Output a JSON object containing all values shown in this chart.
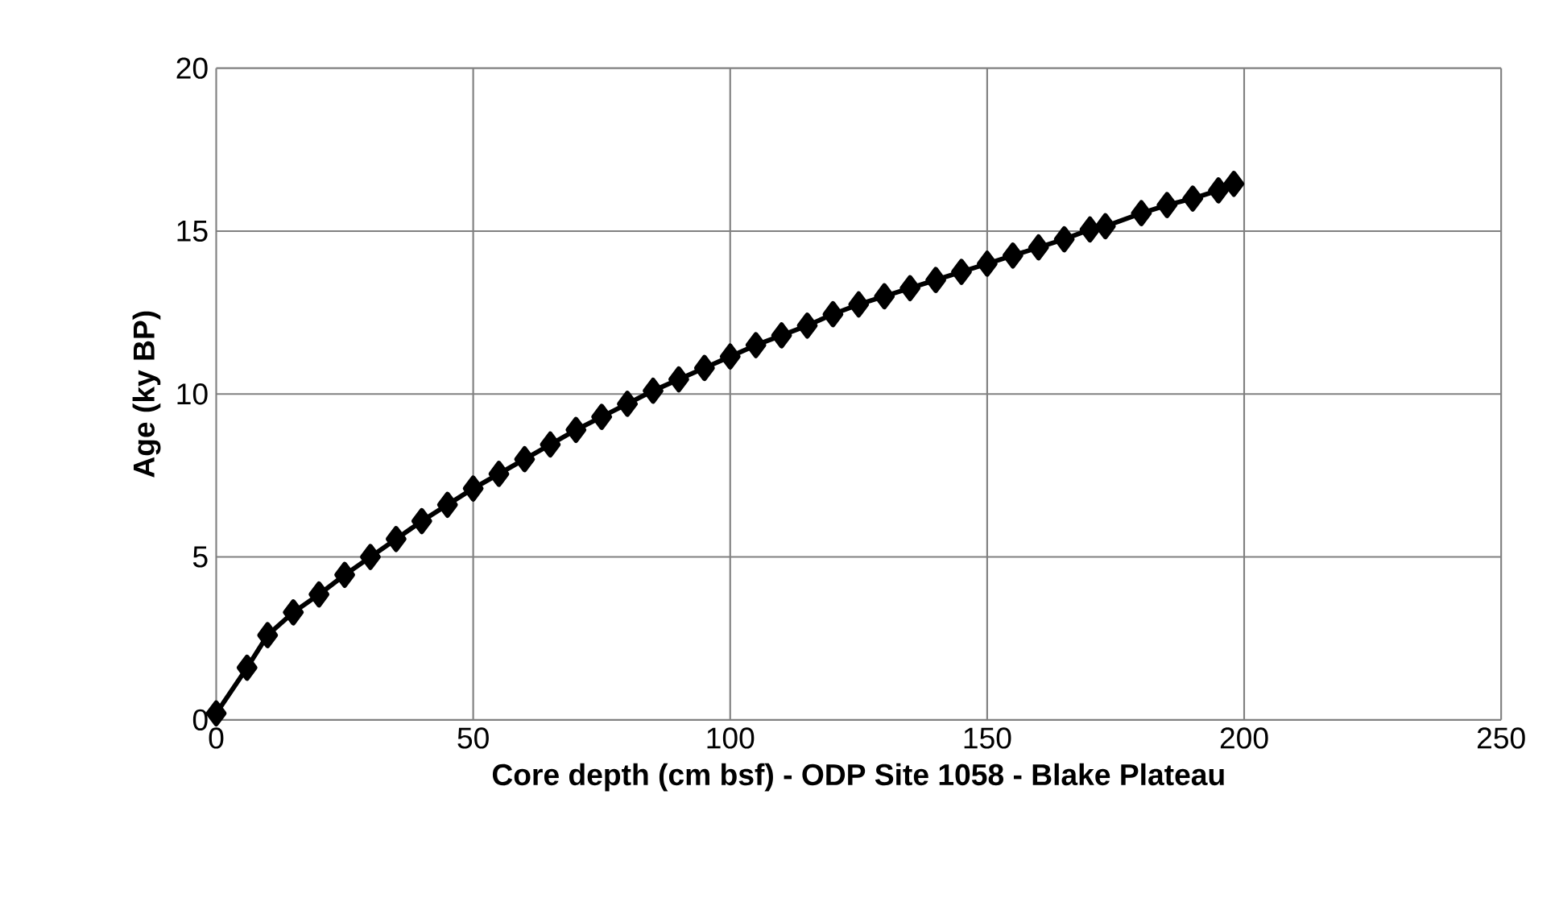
{
  "chart_data": {
    "type": "line",
    "xlabel": "Core depth (cm bsf)  -   ODP Site 1058 - Blake Plateau",
    "ylabel": "Age (ky BP)",
    "x": [
      0,
      6,
      10,
      15,
      20,
      25,
      30,
      35,
      40,
      45,
      50,
      55,
      60,
      65,
      70,
      75,
      80,
      85,
      90,
      95,
      100,
      105,
      110,
      115,
      120,
      125,
      130,
      135,
      140,
      145,
      150,
      155,
      160,
      165,
      170,
      173,
      180,
      185,
      190,
      195,
      198
    ],
    "values": [
      0.2,
      1.6,
      2.6,
      3.3,
      3.85,
      4.45,
      5.0,
      5.55,
      6.1,
      6.6,
      7.1,
      7.55,
      8.0,
      8.45,
      8.9,
      9.3,
      9.7,
      10.1,
      10.45,
      10.8,
      11.15,
      11.5,
      11.8,
      12.1,
      12.45,
      12.75,
      13.0,
      13.25,
      13.5,
      13.75,
      14.0,
      14.25,
      14.5,
      14.75,
      15.05,
      15.15,
      15.55,
      15.8,
      16.0,
      16.25,
      16.45
    ],
    "color": "#000000",
    "marker": "diamond",
    "line_style": "solid",
    "xlim": [
      0,
      250
    ],
    "ylim": [
      0,
      20
    ],
    "xticks": [
      0,
      50,
      100,
      150,
      200,
      250
    ],
    "yticks": [
      0,
      5,
      10,
      15,
      20
    ],
    "grid": true
  }
}
